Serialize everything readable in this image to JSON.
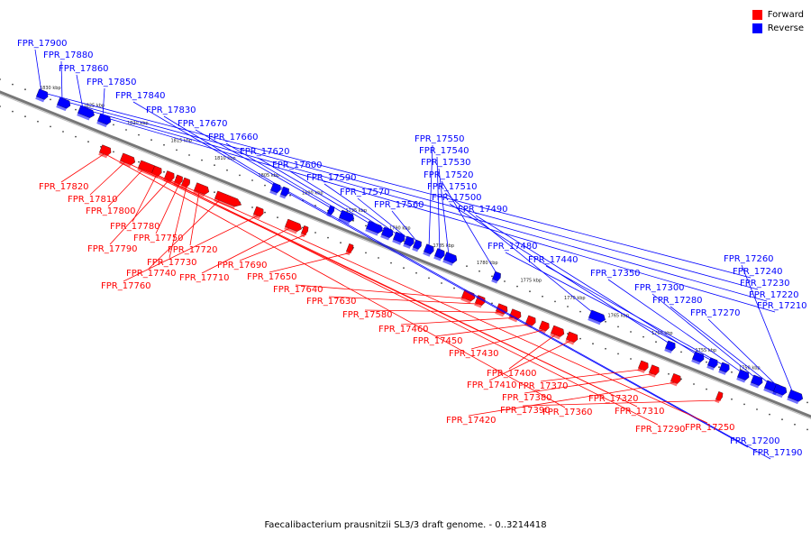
{
  "caption": "Faecalibacterium prausnitzii SL3/3 draft genome. - 0..3214418",
  "colors": {
    "forward": "#ff0000",
    "reverse": "#0000ff",
    "backbone": "#777777"
  },
  "legend": [
    {
      "label": "Forward",
      "color": "#ff0000"
    },
    {
      "label": "Reverse",
      "color": "#0000ff"
    }
  ],
  "scale": [
    "1830 kbp",
    "1825 kbp",
    "1820 kbp",
    "1815 kbp",
    "1810 kbp",
    "1805 kbp",
    "1800 kbp",
    "1795 kbp",
    "1790 kbp",
    "1785 kbp",
    "1780 kbp",
    "1775 kbp",
    "1770 kbp",
    "1765 kbp",
    "1760 kbp",
    "1755 kbp",
    "1750 kbp"
  ],
  "reverse_labels": [
    "FPR_17900",
    "FPR_17880",
    "FPR_17860",
    "FPR_17850",
    "FPR_17840",
    "FPR_17830",
    "FPR_17670",
    "FPR_17660",
    "FPR_17620",
    "FPR_17600",
    "FPR_17590",
    "FPR_17570",
    "FPR_17560",
    "FPR_17550",
    "FPR_17540",
    "FPR_17530",
    "FPR_17520",
    "FPR_17510",
    "FPR_17500",
    "FPR_17490",
    "FPR_17480",
    "FPR_17440",
    "FPR_17350",
    "FPR_17300",
    "FPR_17280",
    "FPR_17270",
    "FPR_17260",
    "FPR_17240",
    "FPR_17230",
    "FPR_17220",
    "FPR_17210",
    "FPR_17200",
    "FPR_17190"
  ],
  "forward_labels": [
    "FPR_17820",
    "FPR_17810",
    "FPR_17800",
    "FPR_17780",
    "FPR_17790",
    "FPR_17750",
    "FPR_17730",
    "FPR_17720",
    "FPR_17740",
    "FPR_17760",
    "FPR_17710",
    "FPR_17690",
    "FPR_17650",
    "FPR_17640",
    "FPR_17630",
    "FPR_17580",
    "FPR_17460",
    "FPR_17450",
    "FPR_17430",
    "FPR_17400",
    "FPR_17410",
    "FPR_17370",
    "FPR_17380",
    "FPR_17420",
    "FPR_17390",
    "FPR_17360",
    "FPR_17320",
    "FPR_17310",
    "FPR_17290",
    "FPR_17250"
  ]
}
